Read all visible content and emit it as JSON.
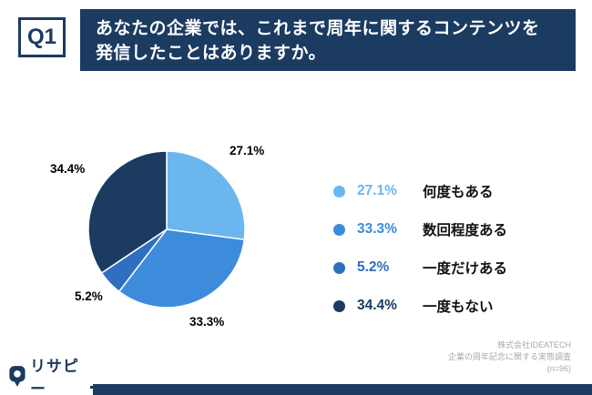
{
  "header": {
    "q_label": "Q1",
    "title_line1": "あなたの企業では、これまで周年に関するコンテンツを",
    "title_line2": "発信したことはありますか。"
  },
  "chart_data": {
    "type": "pie",
    "title": "あなたの企業では、これまで周年に関するコンテンツを発信したことはありますか。",
    "categories": [
      "何度もある",
      "数回程度ある",
      "一度だけある",
      "一度もない"
    ],
    "values": [
      27.1,
      33.3,
      5.2,
      34.4
    ],
    "unit": "%",
    "labels": [
      "27.1%",
      "33.3%",
      "5.2%",
      "34.4%"
    ],
    "colors": [
      "#6CB6EF",
      "#3D8CDC",
      "#2E6FC0",
      "#1B3B61"
    ],
    "start_angle_deg": 0,
    "direction": "clockwise",
    "legend_position": "right"
  },
  "legend": {
    "items": [
      {
        "pct": "27.1%",
        "label": "何度もある",
        "color": "#6CB6EF"
      },
      {
        "pct": "33.3%",
        "label": "数回程度ある",
        "color": "#3D8CDC"
      },
      {
        "pct": "5.2%",
        "label": "一度だけある",
        "color": "#2E6FC0"
      },
      {
        "pct": "34.4%",
        "label": "一度もない",
        "color": "#1B3B61"
      }
    ]
  },
  "source": {
    "line1": "株式会社IDEATECH",
    "line2": "企業の周年記念に関する実態調査",
    "line3": "(n=96)"
  },
  "footer": {
    "logo_text": "リサピー"
  },
  "colors": {
    "navy": "#1B3B61",
    "background": "#FFFFFF",
    "source_text": "#A8A8A8"
  }
}
